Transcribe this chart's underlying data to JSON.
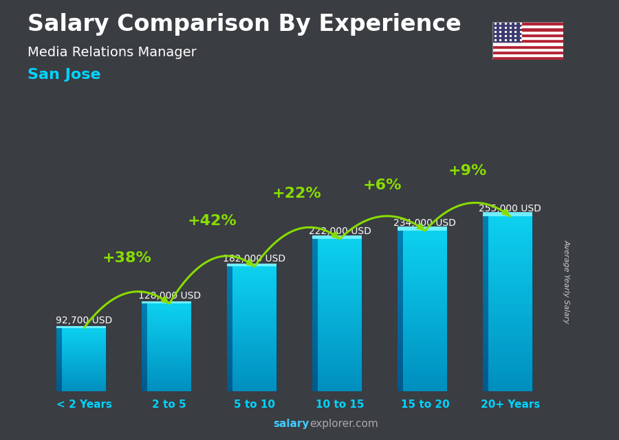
{
  "categories": [
    "< 2 Years",
    "2 to 5",
    "5 to 10",
    "10 to 15",
    "15 to 20",
    "20+ Years"
  ],
  "values": [
    92700,
    128000,
    182000,
    222000,
    234000,
    255000
  ],
  "value_labels": [
    "92,700 USD",
    "128,000 USD",
    "182,000 USD",
    "222,000 USD",
    "234,000 USD",
    "255,000 USD"
  ],
  "pct_changes": [
    "+38%",
    "+42%",
    "+22%",
    "+6%",
    "+9%"
  ],
  "background_color": "#3a3d42",
  "title1": "Salary Comparison By Experience",
  "title2": "Media Relations Manager",
  "title3": "San Jose",
  "ylabel": "Average Yearly Salary",
  "watermark_bold": "salary",
  "watermark_normal": "explorer.com",
  "arrow_color": "#88dd00",
  "pct_color": "#88dd00",
  "value_label_color": "#ffffff",
  "title1_color": "#ffffff",
  "title2_color": "#ffffff",
  "title3_color": "#00d4ff",
  "xlabel_color": "#00d4ff",
  "ylim": [
    0,
    320000
  ],
  "bar_width": 0.52,
  "bar_front_color_top": "#00d0f0",
  "bar_front_color_bot": "#0090c0",
  "bar_left_color": "#0070a0",
  "bar_top_color": "#60e8ff",
  "pct_fontsize": 16,
  "val_fontsize": 10,
  "cat_fontsize": 11,
  "title1_fontsize": 24,
  "title2_fontsize": 14,
  "title3_fontsize": 16
}
